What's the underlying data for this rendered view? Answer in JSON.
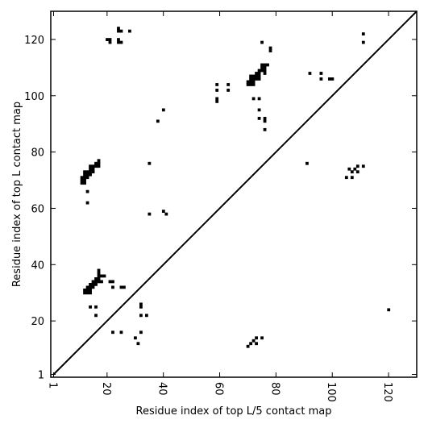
{
  "chart_data": {
    "type": "scatter",
    "xlabel": "Residue index of top L/5 contact map",
    "ylabel": "Residue index of top L contact map",
    "xlim": [
      0,
      130
    ],
    "ylim": [
      0,
      130
    ],
    "x_ticks": [
      1,
      20,
      40,
      60,
      80,
      100,
      120
    ],
    "y_ticks": [
      1,
      20,
      40,
      60,
      80,
      100,
      120
    ],
    "grid": false,
    "diagonal": {
      "from": [
        1,
        1
      ],
      "to": [
        130,
        130
      ]
    },
    "marker_color": "#000000",
    "upper_triangle_top_L": [
      [
        11,
        69
      ],
      [
        11,
        70
      ],
      [
        11,
        71
      ],
      [
        12,
        69
      ],
      [
        12,
        70
      ],
      [
        12,
        71
      ],
      [
        12,
        72
      ],
      [
        12,
        73
      ],
      [
        13,
        71
      ],
      [
        13,
        72
      ],
      [
        13,
        73
      ],
      [
        14,
        72
      ],
      [
        14,
        73
      ],
      [
        14,
        74
      ],
      [
        14,
        75
      ],
      [
        15,
        73
      ],
      [
        15,
        74
      ],
      [
        15,
        75
      ],
      [
        16,
        75
      ],
      [
        16,
        76
      ],
      [
        17,
        75
      ],
      [
        17,
        76
      ],
      [
        17,
        77
      ],
      [
        13,
        66
      ],
      [
        13,
        62
      ],
      [
        12,
        30
      ],
      [
        12,
        31
      ],
      [
        13,
        30
      ],
      [
        13,
        31
      ],
      [
        13,
        32
      ],
      [
        14,
        30
      ],
      [
        14,
        31
      ],
      [
        14,
        32
      ],
      [
        14,
        33
      ],
      [
        15,
        32
      ],
      [
        15,
        33
      ],
      [
        15,
        34
      ],
      [
        16,
        33
      ],
      [
        16,
        34
      ],
      [
        16,
        35
      ],
      [
        17,
        34
      ],
      [
        17,
        35
      ],
      [
        17,
        36
      ],
      [
        17,
        37
      ],
      [
        17,
        38
      ],
      [
        18,
        34
      ],
      [
        18,
        36
      ],
      [
        19,
        36
      ],
      [
        21,
        34
      ],
      [
        22,
        34
      ],
      [
        22,
        32
      ],
      [
        25,
        32
      ],
      [
        26,
        32
      ],
      [
        14,
        25
      ],
      [
        16,
        25
      ],
      [
        16,
        22
      ],
      [
        22,
        16
      ],
      [
        25,
        16
      ],
      [
        30,
        14
      ],
      [
        31,
        12
      ],
      [
        32,
        16
      ],
      [
        32,
        22
      ],
      [
        32,
        25
      ],
      [
        32,
        26
      ],
      [
        34,
        22
      ],
      [
        35,
        58
      ],
      [
        35,
        76
      ],
      [
        38,
        91
      ],
      [
        40,
        95
      ],
      [
        40,
        59
      ],
      [
        41,
        58
      ],
      [
        20,
        120
      ],
      [
        21,
        120
      ],
      [
        21,
        119
      ],
      [
        24,
        124
      ],
      [
        24,
        123
      ],
      [
        24,
        120
      ],
      [
        24,
        119
      ],
      [
        25,
        123
      ],
      [
        25,
        119
      ],
      [
        28,
        123
      ],
      [
        59,
        98
      ],
      [
        59,
        99
      ],
      [
        59,
        102
      ],
      [
        59,
        104
      ],
      [
        63,
        102
      ],
      [
        63,
        104
      ],
      [
        70,
        104
      ],
      [
        70,
        105
      ],
      [
        71,
        104
      ],
      [
        71,
        105
      ],
      [
        71,
        106
      ],
      [
        71,
        107
      ],
      [
        72,
        104
      ],
      [
        72,
        105
      ],
      [
        72,
        106
      ],
      [
        72,
        107
      ],
      [
        73,
        106
      ],
      [
        73,
        107
      ],
      [
        73,
        108
      ],
      [
        74,
        106
      ],
      [
        74,
        107
      ],
      [
        74,
        108
      ],
      [
        74,
        109
      ],
      [
        75,
        109
      ],
      [
        75,
        110
      ],
      [
        75,
        111
      ],
      [
        76,
        108
      ],
      [
        76,
        109
      ],
      [
        76,
        110
      ],
      [
        76,
        111
      ],
      [
        77,
        111
      ],
      [
        72,
        99
      ],
      [
        74,
        99
      ],
      [
        74,
        95
      ],
      [
        74,
        92
      ],
      [
        76,
        92
      ],
      [
        76,
        91
      ],
      [
        76,
        88
      ],
      [
        75,
        119
      ],
      [
        78,
        116
      ],
      [
        78,
        117
      ],
      [
        91,
        76
      ],
      [
        92,
        108
      ],
      [
        96,
        108
      ],
      [
        96,
        106
      ],
      [
        99,
        106
      ],
      [
        100,
        106
      ],
      [
        105,
        71
      ],
      [
        106,
        74
      ],
      [
        107,
        73
      ],
      [
        107,
        71
      ],
      [
        108,
        74
      ],
      [
        109,
        73
      ],
      [
        109,
        75
      ],
      [
        111,
        75
      ],
      [
        111,
        122
      ],
      [
        111,
        119
      ],
      [
        120,
        24
      ]
    ],
    "lower_triangle_top_L5": [
      [
        70,
        11
      ],
      [
        71,
        12
      ],
      [
        72,
        13
      ],
      [
        73,
        14
      ],
      [
        73,
        12
      ],
      [
        75,
        14
      ]
    ]
  }
}
